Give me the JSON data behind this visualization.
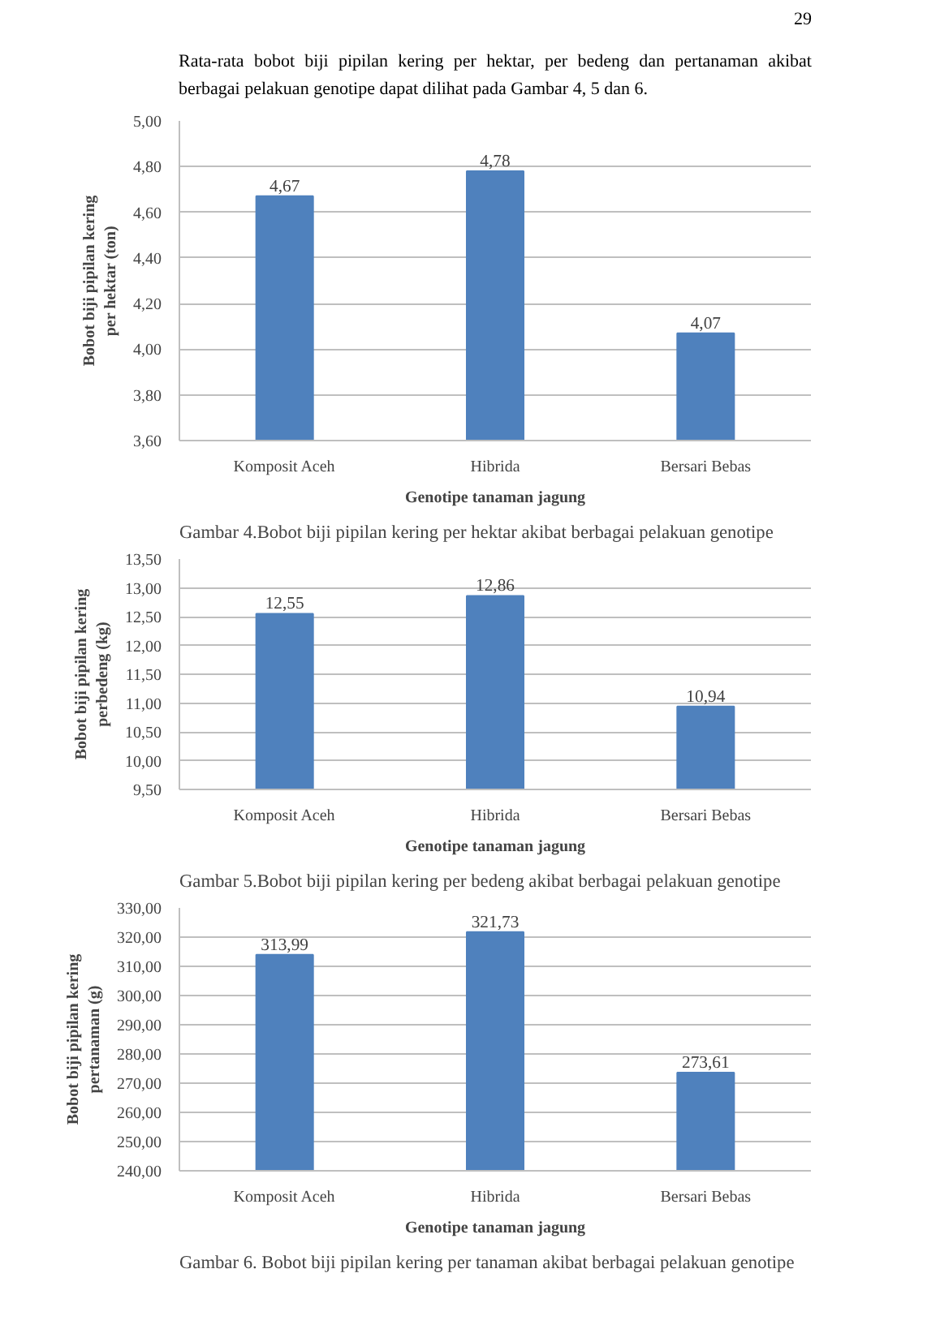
{
  "chart_data": [
    {
      "type": "bar",
      "categories": [
        "Komposit Aceh",
        "Hibrida",
        "Bersari Bebas"
      ],
      "values": [
        4.67,
        4.78,
        4.07
      ],
      "color": "#4f81bd",
      "value_labels": [
        "4,67",
        "4,78",
        "4,07"
      ],
      "ylim": [
        3.6,
        5.0
      ],
      "yticks": [
        {
          "value": 3.6,
          "label": "3,60"
        },
        {
          "value": 3.8,
          "label": "3,80"
        },
        {
          "value": 4.0,
          "label": "4,00"
        },
        {
          "value": 4.2,
          "label": "4,20"
        },
        {
          "value": 4.4,
          "label": "4,40"
        },
        {
          "value": 4.6,
          "label": "4,60"
        },
        {
          "value": 4.8,
          "label": "4,80"
        },
        {
          "value": 5.0,
          "label": "5,00"
        }
      ],
      "xlabel": "Genotipe tanaman jagung",
      "ylabel": "Bobot biji pipilan kering per hektar (ton)",
      "grid": "y",
      "annotations": [
        "29",
        "Rata-rata bobot biji pipilan kering per hektar, per bedeng dan pertanaman akibat berbagai pelakuan genotipe dapat dilihat pada Gambar 4, 5 dan 6.",
        "Gambar 4.Bobot biji pipilan kering per hektar akibat berbagai pelakuan genotipe"
      ]
    },
    {
      "type": "bar",
      "categories": [
        "Komposit Aceh",
        "Hibrida",
        "Bersari Bebas"
      ],
      "values": [
        12.55,
        12.86,
        10.94
      ],
      "color": "#4f81bd",
      "value_labels": [
        "12,55",
        "12,86",
        "10,94"
      ],
      "ylim": [
        9.5,
        13.5
      ],
      "yticks": [
        {
          "value": 9.5,
          "label": "9,50"
        },
        {
          "value": 10.0,
          "label": "10,00"
        },
        {
          "value": 10.5,
          "label": "10,50"
        },
        {
          "value": 11.0,
          "label": "11,00"
        },
        {
          "value": 11.5,
          "label": "11,50"
        },
        {
          "value": 12.0,
          "label": "12,00"
        },
        {
          "value": 12.5,
          "label": "12,50"
        },
        {
          "value": 13.0,
          "label": "13,00"
        },
        {
          "value": 13.5,
          "label": "13,50"
        }
      ],
      "xlabel": "Genotipe tanaman jagung",
      "ylabel": "Bobot biji pipilan kering perbedeng (kg)",
      "grid": "y",
      "annotations": [
        "Gambar 5.Bobot biji pipilan kering per bedeng akibat berbagai pelakuan genotipe"
      ]
    },
    {
      "type": "bar",
      "categories": [
        "Komposit Aceh",
        "Hibrida",
        "Bersari Bebas"
      ],
      "values": [
        313.99,
        321.73,
        273.61
      ],
      "color": "#4f81bd",
      "value_labels": [
        "313,99",
        "321,73",
        "273,61"
      ],
      "ylim": [
        240,
        330
      ],
      "yticks": [
        {
          "value": 240,
          "label": "240,00"
        },
        {
          "value": 250,
          "label": "250,00"
        },
        {
          "value": 260,
          "label": "260,00"
        },
        {
          "value": 270,
          "label": "270,00"
        },
        {
          "value": 280,
          "label": "280,00"
        },
        {
          "value": 290,
          "label": "290,00"
        },
        {
          "value": 300,
          "label": "300,00"
        },
        {
          "value": 310,
          "label": "310,00"
        },
        {
          "value": 320,
          "label": "320,00"
        },
        {
          "value": 330,
          "label": "330,00"
        }
      ],
      "xlabel": "Genotipe tanaman jagung",
      "ylabel": "Bobot biji pipilan kering pertanaman (g)",
      "grid": "y",
      "annotations": [
        "Gambar 6. Bobot biji pipilan kering per tanaman akibat berbagai pelakuan genotipe"
      ]
    }
  ]
}
